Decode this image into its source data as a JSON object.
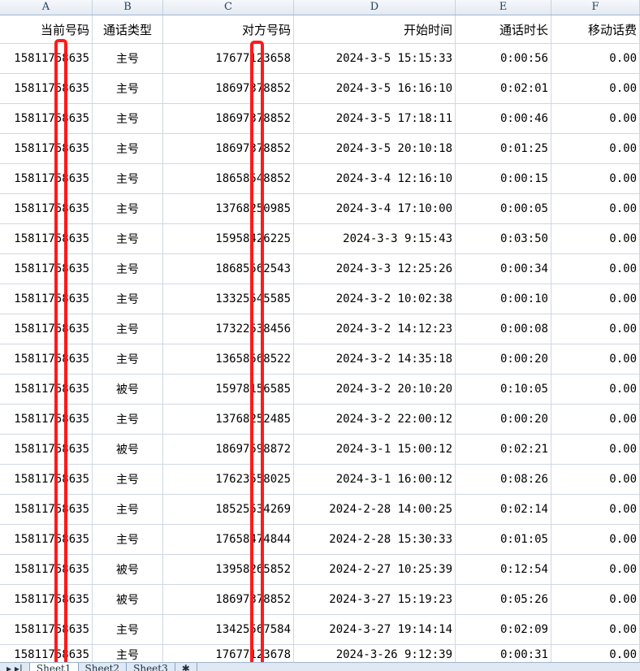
{
  "columns": [
    "A",
    "B",
    "C",
    "D",
    "E",
    "F"
  ],
  "headers": [
    "当前号码",
    "通话类型",
    "对方号码",
    "开始时间",
    "通话时长",
    "移动话费"
  ],
  "rows": [
    [
      "15811758635",
      "主号",
      "17677123658",
      "2024-3-5 15:15:33",
      "0:00:56",
      "0.00"
    ],
    [
      "15811758635",
      "主号",
      "18697378852",
      "2024-3-5 16:16:10",
      "0:02:01",
      "0.00"
    ],
    [
      "15811758635",
      "主号",
      "18697378852",
      "2024-3-5 17:18:11",
      "0:00:46",
      "0.00"
    ],
    [
      "15811758635",
      "主号",
      "18697378852",
      "2024-3-5 20:10:18",
      "0:01:25",
      "0.00"
    ],
    [
      "15811758635",
      "主号",
      "18658548852",
      "2024-3-4 12:16:10",
      "0:00:15",
      "0.00"
    ],
    [
      "15811758635",
      "主号",
      "13768250985",
      "2024-3-4 17:10:00",
      "0:00:05",
      "0.00"
    ],
    [
      "15811758635",
      "主号",
      "15958426225",
      "2024-3-3 9:15:43",
      "0:03:50",
      "0.00"
    ],
    [
      "15811758635",
      "主号",
      "18685562543",
      "2024-3-3 12:25:26",
      "0:00:34",
      "0.00"
    ],
    [
      "15811758635",
      "主号",
      "13325545585",
      "2024-3-2 10:02:38",
      "0:00:10",
      "0.00"
    ],
    [
      "15811758635",
      "主号",
      "17322538456",
      "2024-3-2 14:12:23",
      "0:00:08",
      "0.00"
    ],
    [
      "15811758635",
      "主号",
      "13658568522",
      "2024-3-2 14:35:18",
      "0:00:20",
      "0.00"
    ],
    [
      "15811758635",
      "被号",
      "15978156585",
      "2024-3-2 20:10:20",
      "0:10:05",
      "0.00"
    ],
    [
      "15811758635",
      "主号",
      "13768252485",
      "2024-3-2 22:00:12",
      "0:00:20",
      "0.00"
    ],
    [
      "15811758635",
      "被号",
      "18697598872",
      "2024-3-1 15:00:12",
      "0:02:21",
      "0.00"
    ],
    [
      "15811758635",
      "主号",
      "17623558025",
      "2024-3-1 16:00:12",
      "0:08:26",
      "0.00"
    ],
    [
      "15811758635",
      "主号",
      "18525534269",
      "2024-2-28 14:00:25",
      "0:02:14",
      "0.00"
    ],
    [
      "15811758635",
      "主号",
      "17658474844",
      "2024-2-28 15:30:33",
      "0:01:05",
      "0.00"
    ],
    [
      "15811758635",
      "被号",
      "13958265852",
      "2024-2-27 10:25:39",
      "0:12:54",
      "0.00"
    ],
    [
      "15811758635",
      "被号",
      "18697378852",
      "2024-3-27 15:19:23",
      "0:05:26",
      "0.00"
    ],
    [
      "15811758635",
      "主号",
      "13425567584",
      "2024-3-27 19:14:14",
      "0:02:09",
      "0.00"
    ],
    [
      "15811758635",
      "主号",
      "17677123678",
      "2024-3-26 9:12:39",
      "0:00:31",
      "0.00"
    ]
  ],
  "sheets": [
    "Sheet1",
    "Sheet2",
    "Sheet3"
  ],
  "redaction_color": "#ff1a1a"
}
